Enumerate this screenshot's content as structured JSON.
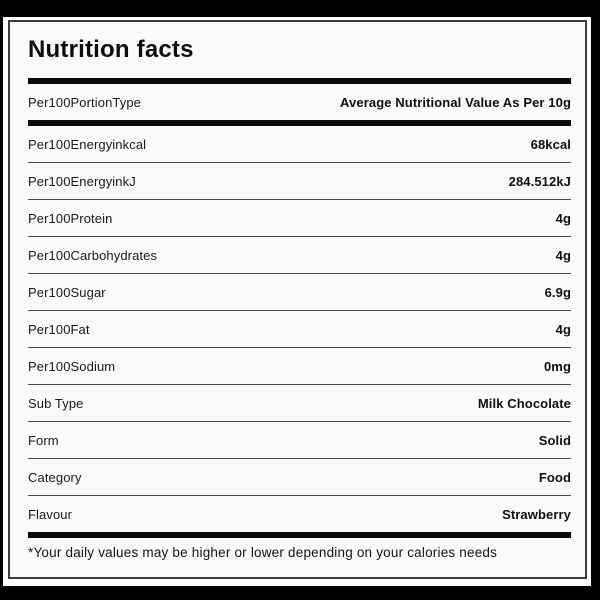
{
  "card": {
    "title": "Nutrition facts",
    "rows": [
      {
        "label": "Per100PortionType",
        "value": "Average Nutritional Value As Per 10g"
      },
      {
        "label": "Per100Energyinkcal",
        "value": "68kcal"
      },
      {
        "label": "Per100EnergyinkJ",
        "value": "284.512kJ"
      },
      {
        "label": "Per100Protein",
        "value": "4g"
      },
      {
        "label": "Per100Carbohydrates",
        "value": "4g"
      },
      {
        "label": "Per100Sugar",
        "value": "6.9g"
      },
      {
        "label": "Per100Fat",
        "value": "4g"
      },
      {
        "label": "Per100Sodium",
        "value": "0mg"
      },
      {
        "label": "Sub Type",
        "value": "Milk Chocolate"
      },
      {
        "label": "Form",
        "value": "Solid"
      },
      {
        "label": "Category",
        "value": "Food"
      },
      {
        "label": "Flavour",
        "value": "Strawberry"
      }
    ],
    "footnote": "*Your daily values may be higher or lower depending on your calories needs",
    "colors": {
      "frame_background": "#000000",
      "page_background": "#ffffff",
      "card_background": "#fafafa",
      "card_border": "#3d3d3d",
      "section_bar": "#0b0b0b",
      "divider": "#4b4b4b",
      "text": "#131313"
    }
  }
}
